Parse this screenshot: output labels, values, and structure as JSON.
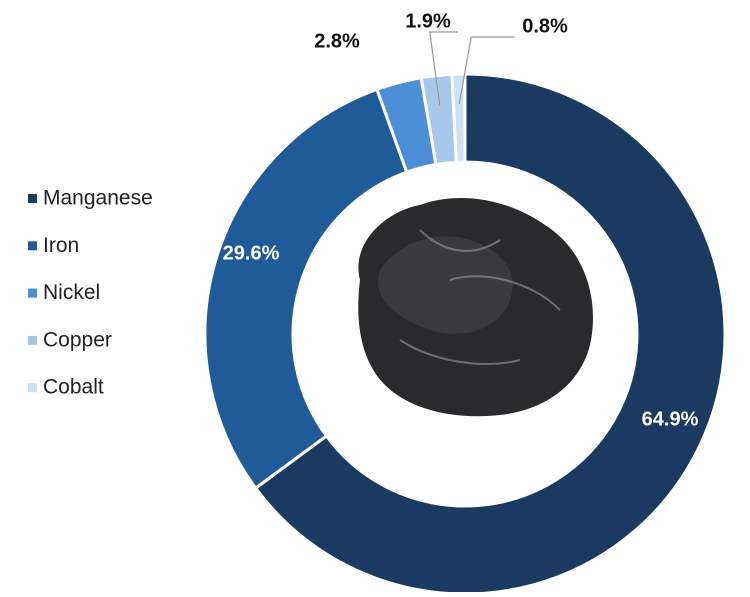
{
  "chart_data": {
    "type": "donut",
    "categories": [
      "Manganese",
      "Iron",
      "Nickel",
      "Copper",
      "Cobalt"
    ],
    "values": [
      64.9,
      29.6,
      2.8,
      1.9,
      0.8
    ],
    "value_labels": [
      "64.9%",
      "29.6%",
      "2.8%",
      "1.9%",
      "0.8%"
    ],
    "colors": [
      "#1b3a62",
      "#1f5b98",
      "#4a8fd6",
      "#a8c8ea",
      "#cde2f5"
    ],
    "legend": "left"
  }
}
